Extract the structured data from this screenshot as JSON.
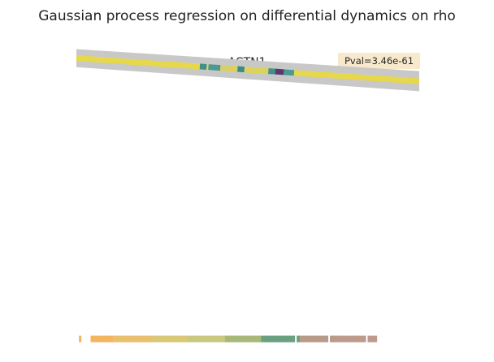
{
  "chart_data": {
    "type": "line",
    "suptitle": "Gaussian process regression on differential dynamics on rho",
    "title": "ACTN1",
    "annotation": "Pval=3.46e-61",
    "xlabel": "",
    "ylabel": "",
    "grid": false,
    "axes_visible": false,
    "xlim": [
      0,
      1
    ],
    "ylim": [
      0,
      1
    ],
    "fit": {
      "x": [
        0.0,
        1.0
      ],
      "y": [
        0.955,
        0.878
      ],
      "ci_lower": [
        0.925,
        0.845
      ],
      "ci_upper": [
        0.985,
        0.912
      ]
    },
    "line_color_segments": [
      {
        "x0": 0.0,
        "x1": 0.36,
        "color": "#e6d84a"
      },
      {
        "x0": 0.36,
        "x1": 0.38,
        "color": "#3f8f8a"
      },
      {
        "x0": 0.38,
        "x1": 0.385,
        "color": "#e6d84a"
      },
      {
        "x0": 0.385,
        "x1": 0.42,
        "color": "#4a9a94"
      },
      {
        "x0": 0.42,
        "x1": 0.47,
        "color": "#d9d060"
      },
      {
        "x0": 0.47,
        "x1": 0.49,
        "color": "#3a8a86"
      },
      {
        "x0": 0.49,
        "x1": 0.56,
        "color": "#dcd45a"
      },
      {
        "x0": 0.56,
        "x1": 0.58,
        "color": "#3f8f8a"
      },
      {
        "x0": 0.58,
        "x1": 0.605,
        "color": "#5a3a6e"
      },
      {
        "x0": 0.605,
        "x1": 0.635,
        "color": "#4a9a94"
      },
      {
        "x0": 0.635,
        "x1": 1.0,
        "color": "#e6d84a"
      }
    ],
    "rug": {
      "y": 0.02,
      "x": [
        0.011,
        0.045,
        0.05,
        0.055,
        0.059,
        0.063,
        0.066,
        0.072,
        0.076,
        0.081,
        0.085,
        0.088,
        0.092,
        0.095,
        0.099,
        0.103,
        0.106,
        0.11,
        0.113,
        0.117,
        0.12,
        0.124,
        0.128,
        0.131,
        0.135,
        0.138,
        0.142,
        0.146,
        0.149,
        0.153,
        0.156,
        0.16,
        0.163,
        0.167,
        0.171,
        0.174,
        0.178,
        0.181,
        0.185,
        0.189,
        0.192,
        0.196,
        0.199,
        0.203,
        0.207,
        0.21,
        0.214,
        0.217,
        0.221,
        0.225,
        0.228,
        0.232,
        0.235,
        0.239,
        0.243,
        0.246,
        0.25,
        0.253,
        0.257,
        0.261,
        0.264,
        0.268,
        0.271,
        0.275,
        0.279,
        0.282,
        0.286,
        0.289,
        0.293,
        0.297,
        0.3,
        0.304,
        0.307,
        0.311,
        0.315,
        0.318,
        0.322,
        0.325,
        0.329,
        0.333,
        0.336,
        0.34,
        0.343,
        0.347,
        0.351,
        0.354,
        0.358,
        0.361,
        0.365,
        0.369,
        0.372,
        0.376,
        0.379,
        0.383,
        0.387,
        0.39,
        0.394,
        0.397,
        0.401,
        0.405,
        0.408,
        0.412,
        0.415,
        0.419,
        0.423,
        0.426,
        0.43,
        0.433,
        0.437,
        0.441,
        0.444,
        0.448,
        0.452,
        0.458,
        0.466,
        0.474,
        0.482,
        0.49,
        0.498,
        0.506,
        0.514,
        0.522,
        0.53,
        0.538,
        0.546,
        0.554,
        0.562,
        0.57,
        0.578,
        0.586,
        0.594,
        0.602,
        0.61,
        0.618,
        0.626,
        0.634,
        0.642,
        0.65,
        0.658,
        0.666,
        0.674,
        0.682,
        0.69,
        0.698,
        0.706,
        0.714,
        0.722,
        0.73,
        0.738,
        0.746,
        0.754,
        0.762,
        0.77,
        0.78,
        0.79,
        0.8,
        0.81,
        0.82,
        0.83,
        0.84,
        0.85,
        0.86,
        0.87
      ],
      "gap_after": [
        0.011,
        0.633,
        0.73,
        0.84
      ],
      "colors": [
        "#f2b560",
        "#e8c070",
        "#d8c878",
        "#c8c880",
        "#a8b878",
        "#6aa080",
        "#b89a88",
        "#bd9a8c"
      ]
    },
    "colors": {
      "ci_band": "#c8c8c8",
      "annotation_box": "#f8e8cc"
    }
  }
}
